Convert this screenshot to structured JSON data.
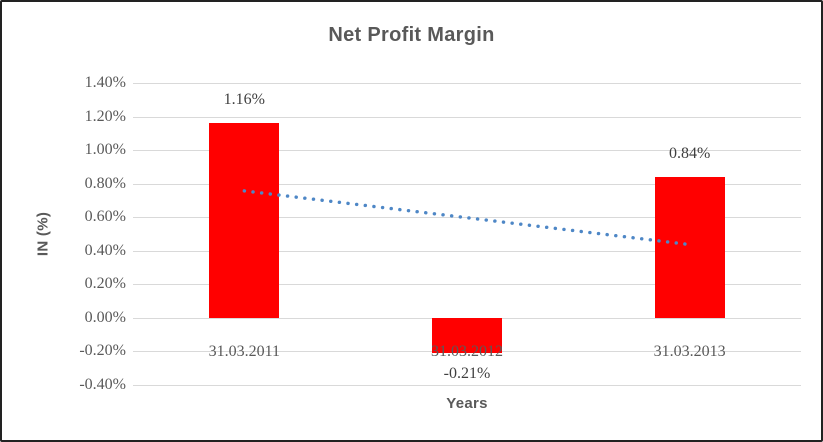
{
  "canvas": {
    "background": "#ffffff",
    "border_color": "#222222"
  },
  "chart_data": {
    "type": "bar",
    "title": "Net Profit Margin",
    "xlabel": "Years",
    "ylabel": "IN (%)",
    "categories": [
      "31.03.2011",
      "31.03.2012",
      "31.03.2013"
    ],
    "series": [
      {
        "name": "Net Profit Margin",
        "color": "#ff0000",
        "values": [
          1.16,
          -0.21,
          0.84
        ]
      }
    ],
    "data_labels": [
      "1.16%",
      "-0.21%",
      "0.84%"
    ],
    "ylim": [
      -0.4,
      1.4
    ],
    "ytick_step": 0.2,
    "ytick_labels": [
      "1.40%",
      "1.20%",
      "1.00%",
      "0.80%",
      "0.60%",
      "0.40%",
      "0.20%",
      "0.00%",
      "-0.20%",
      "-0.40%"
    ],
    "grid": true,
    "legend": "none",
    "trendline": {
      "type": "linear",
      "style": "dotted",
      "color": "#4e87c6",
      "start_value": 0.757,
      "end_value": 0.437
    },
    "colors": {
      "grid": "#d9d9d9",
      "axis_text": "#595959",
      "label_text": "#3f3f3f",
      "title_text": "#595959"
    }
  }
}
